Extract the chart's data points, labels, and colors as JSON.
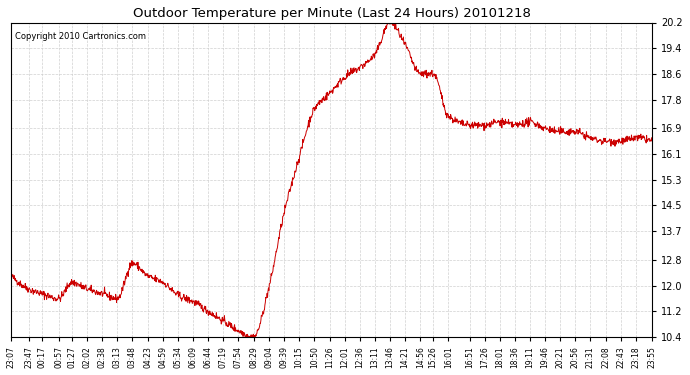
{
  "title": "Outdoor Temperature per Minute (Last 24 Hours) 20101218",
  "copyright": "Copyright 2010 Cartronics.com",
  "line_color": "#cc0000",
  "bg_color": "#ffffff",
  "plot_bg_color": "#ffffff",
  "grid_color": "#cccccc",
  "ylim": [
    10.4,
    20.2
  ],
  "yticks": [
    10.4,
    11.2,
    12.0,
    12.8,
    13.7,
    14.5,
    15.3,
    16.1,
    16.9,
    17.8,
    18.6,
    19.4,
    20.2
  ],
  "xtick_labels": [
    "23:07",
    "23:47",
    "00:17",
    "00:57",
    "01:27",
    "02:02",
    "02:38",
    "03:13",
    "03:48",
    "04:23",
    "04:59",
    "05:34",
    "06:09",
    "06:44",
    "07:19",
    "07:54",
    "08:29",
    "09:04",
    "09:39",
    "10:15",
    "10:50",
    "11:26",
    "12:01",
    "12:36",
    "13:11",
    "13:46",
    "14:21",
    "14:56",
    "15:26",
    "16:01",
    "16:51",
    "17:26",
    "18:01",
    "18:36",
    "19:11",
    "19:46",
    "20:21",
    "20:56",
    "21:31",
    "22:08",
    "22:43",
    "23:18",
    "23:55"
  ],
  "key_rel_mins": [
    0,
    40,
    70,
    110,
    140,
    175,
    211,
    246,
    281,
    316,
    352,
    387,
    422,
    457,
    492,
    527,
    562,
    597,
    632,
    668,
    703,
    739,
    774,
    809,
    844,
    879,
    914,
    949,
    979,
    1014,
    1064,
    1099,
    1134,
    1169,
    1204,
    1239,
    1274,
    1309,
    1344,
    1381,
    1416,
    1451,
    1488
  ],
  "key_values": [
    12.3,
    11.9,
    11.75,
    11.6,
    12.1,
    11.9,
    11.75,
    11.6,
    12.7,
    12.3,
    12.1,
    11.7,
    11.5,
    11.2,
    10.9,
    10.6,
    10.4,
    11.9,
    14.2,
    16.0,
    17.5,
    18.0,
    18.5,
    18.8,
    19.2,
    20.2,
    19.5,
    18.6,
    18.6,
    17.3,
    17.0,
    17.0,
    17.1,
    17.0,
    17.1,
    16.9,
    16.8,
    16.8,
    16.6,
    16.5,
    16.5,
    16.6,
    16.5
  ]
}
